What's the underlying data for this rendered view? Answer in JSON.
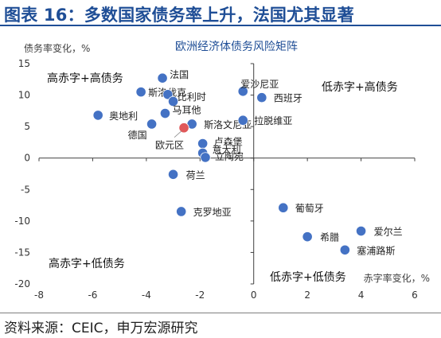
{
  "header": {
    "title": "图表 16：多数国家债务率上升，法国尤其显著"
  },
  "footer": {
    "source": "资料来源：CEIC，申万宏源研究"
  },
  "chart_data": {
    "type": "scatter",
    "title": "欧洲经济体债务风险矩阵",
    "xlabel": "赤字率变化，%",
    "ylabel": "债务率变化，%",
    "xlim": [
      -8,
      6
    ],
    "ylim": [
      -20,
      15
    ],
    "xticks": [
      -8,
      -6,
      -4,
      -2,
      0,
      2,
      4,
      6
    ],
    "yticks": [
      -20,
      -15,
      -10,
      -5,
      0,
      5,
      10,
      15
    ],
    "grid": false,
    "quadrant_labels": {
      "top_left": "高赤字+高债务",
      "top_right": "低赤字+高债务",
      "bottom_left": "高赤字+低债务",
      "bottom_right": "低赤字+低债务"
    },
    "colors": {
      "point": "#4472c4",
      "highlight": "#e0585a",
      "axis": "#404040",
      "title": "#1f4e96"
    },
    "points": [
      {
        "label": "法国",
        "x": -3.4,
        "y": 12.7
      },
      {
        "label": "斯洛伐克",
        "x": -4.2,
        "y": 10.5
      },
      {
        "label": "比利时",
        "x": -3.2,
        "y": 10.1
      },
      {
        "label": "",
        "x": -3.0,
        "y": 9.0
      },
      {
        "label": "马耳他",
        "x": -3.3,
        "y": 7.1
      },
      {
        "label": "奥地利",
        "x": -5.8,
        "y": 6.8
      },
      {
        "label": "德国",
        "x": -3.8,
        "y": 5.4
      },
      {
        "label": "斯洛文尼亚",
        "x": -2.3,
        "y": 5.4
      },
      {
        "label": "欧元区",
        "x": -2.6,
        "y": 4.8,
        "highlight": true
      },
      {
        "label": "爱沙尼亚",
        "x": -0.4,
        "y": 10.6
      },
      {
        "label": "西班牙",
        "x": 0.3,
        "y": 9.6
      },
      {
        "label": "拉脱维亚",
        "x": -0.4,
        "y": 6.0
      },
      {
        "label": "卢森堡",
        "x": -1.9,
        "y": 2.3
      },
      {
        "label": "意大利",
        "x": -1.9,
        "y": 0.8
      },
      {
        "label": "立陶宛",
        "x": -1.8,
        "y": 0.1
      },
      {
        "label": "荷兰",
        "x": -3.0,
        "y": -2.6
      },
      {
        "label": "克罗地亚",
        "x": -2.7,
        "y": -8.5
      },
      {
        "label": "葡萄牙",
        "x": 1.1,
        "y": -7.9
      },
      {
        "label": "爱尔兰",
        "x": 4.0,
        "y": -11.6
      },
      {
        "label": "希腊",
        "x": 2.0,
        "y": -12.5
      },
      {
        "label": "塞浦路斯",
        "x": 3.4,
        "y": -14.6
      }
    ]
  }
}
